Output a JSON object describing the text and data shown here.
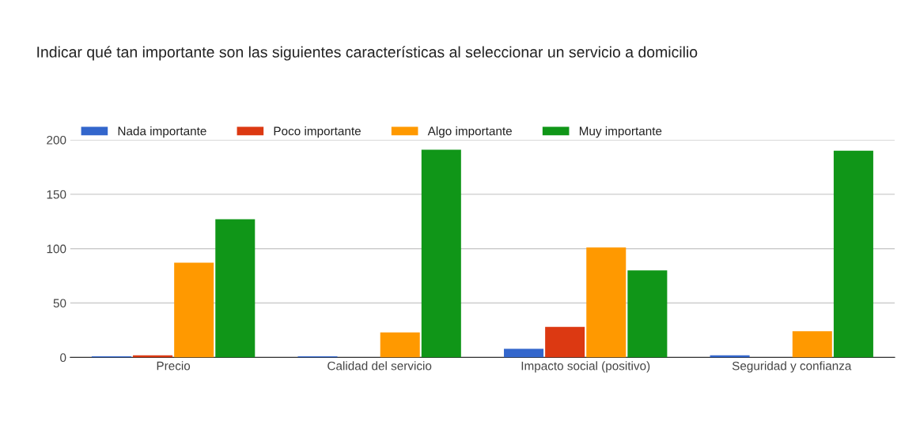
{
  "chart_data": {
    "type": "bar",
    "title": "Indicar qué tan importante son las siguientes características al seleccionar un servicio a domicilio",
    "categories": [
      "Precio",
      "Calidad del servicio",
      "Impacto social (positivo)",
      "Seguridad y confianza"
    ],
    "series": [
      {
        "name": "Nada importante",
        "color": "#3366cc",
        "values": [
          1,
          1,
          8,
          2
        ]
      },
      {
        "name": "Poco importante",
        "color": "#dc3912",
        "values": [
          2,
          0,
          28,
          0
        ]
      },
      {
        "name": "Algo importante",
        "color": "#ff9900",
        "values": [
          87,
          23,
          101,
          24
        ]
      },
      {
        "name": "Muy importante",
        "color": "#109618",
        "values": [
          127,
          191,
          80,
          190
        ]
      }
    ],
    "ylim": [
      0,
      200
    ],
    "yticks": [
      0,
      50,
      100,
      150,
      200
    ],
    "grid": "y",
    "legend": "top left"
  }
}
